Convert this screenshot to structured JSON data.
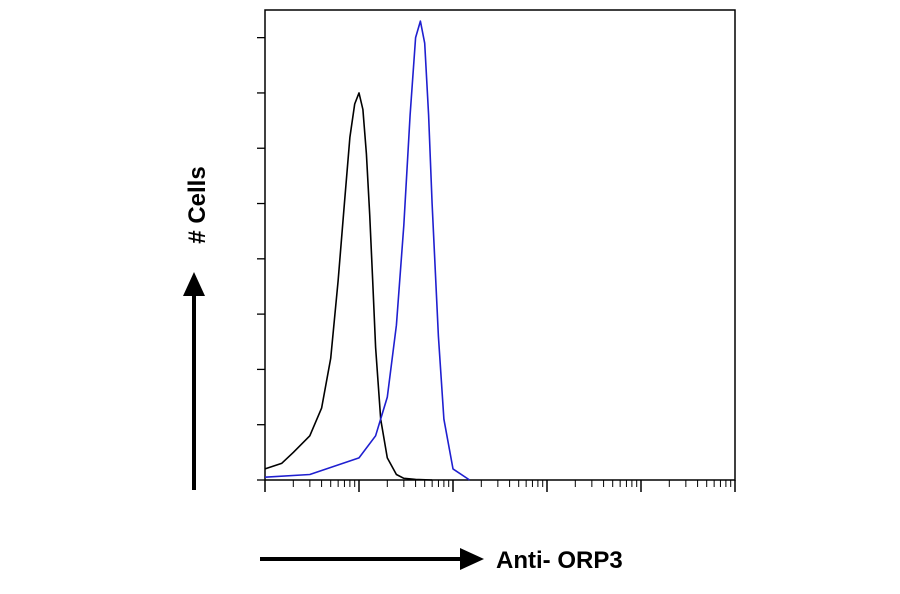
{
  "chart_data": {
    "type": "line",
    "title": "",
    "xlabel": "Anti- ORP3",
    "ylabel": "# Cells",
    "x_scale": "log",
    "xlim": [
      1,
      100000
    ],
    "ylim": [
      0,
      8.5
    ],
    "grid": false,
    "legend": "none",
    "series": [
      {
        "color": "#000000",
        "x": [
          1,
          1.5,
          2,
          3,
          4,
          5,
          6,
          7,
          8,
          9,
          10,
          11,
          12,
          13,
          14,
          15,
          17,
          20,
          25,
          30,
          40,
          60
        ],
        "y": [
          0.2,
          0.3,
          0.5,
          0.8,
          1.3,
          2.2,
          3.6,
          5.0,
          6.2,
          6.8,
          7.0,
          6.7,
          5.9,
          4.8,
          3.6,
          2.4,
          1.1,
          0.4,
          0.1,
          0.03,
          0.01,
          0.0
        ]
      },
      {
        "color": "#1f1fd0",
        "x": [
          1,
          3,
          10,
          15,
          20,
          25,
          30,
          35,
          40,
          45,
          50,
          55,
          60,
          70,
          80,
          100,
          150
        ],
        "y": [
          0.05,
          0.1,
          0.4,
          0.8,
          1.5,
          2.8,
          4.6,
          6.6,
          8.0,
          8.3,
          7.9,
          6.6,
          5.0,
          2.6,
          1.1,
          0.2,
          0.0
        ]
      }
    ]
  }
}
